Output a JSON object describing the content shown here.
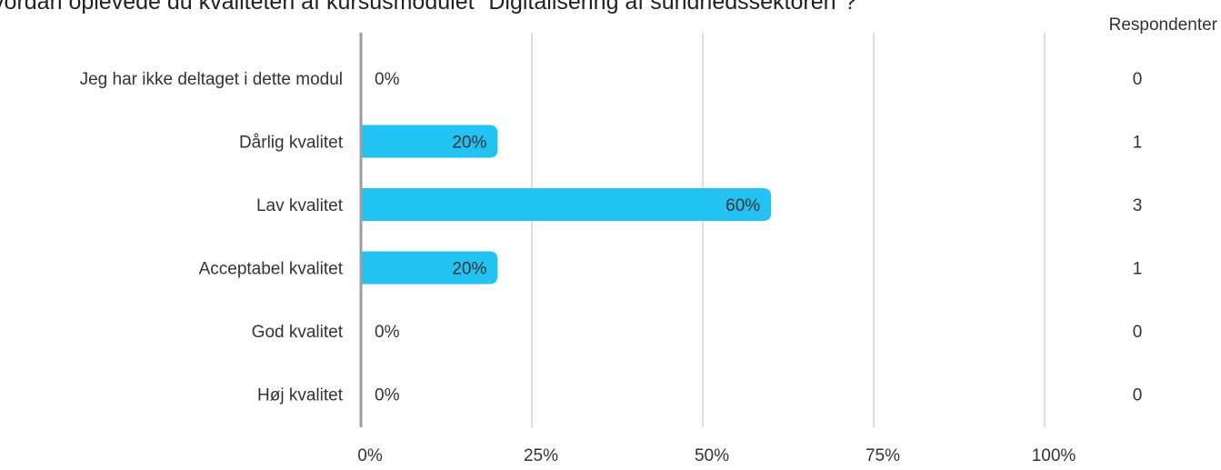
{
  "chart_data": {
    "type": "bar",
    "orientation": "horizontal",
    "title": "Hvordan oplevede du kvaliteten af kursusmodulet \"Digitalisering af sundhedssektoren\"?",
    "categories": [
      "Jeg har ikke deltaget i dette modul",
      "Dårlig kvalitet",
      "Lav kvalitet",
      "Acceptabel kvalitet",
      "God kvalitet",
      "Høj kvalitet"
    ],
    "values": [
      0,
      20,
      60,
      20,
      0,
      0
    ],
    "value_labels": [
      "0%",
      "20%",
      "60%",
      "20%",
      "0%",
      "0%"
    ],
    "respondents_header": "Respondenter",
    "respondents": [
      "0",
      "1",
      "3",
      "1",
      "0",
      "0"
    ],
    "x_ticks": [
      0,
      25,
      50,
      75,
      100
    ],
    "x_tick_labels": [
      "0%",
      "25%",
      "50%",
      "75%",
      "100%"
    ],
    "xlim": [
      0,
      100
    ],
    "grid": true,
    "colors": {
      "bar": "#22c3f2",
      "grid": "#bdbdbd",
      "axis": "#9e9e9e",
      "text": "#333333"
    }
  }
}
